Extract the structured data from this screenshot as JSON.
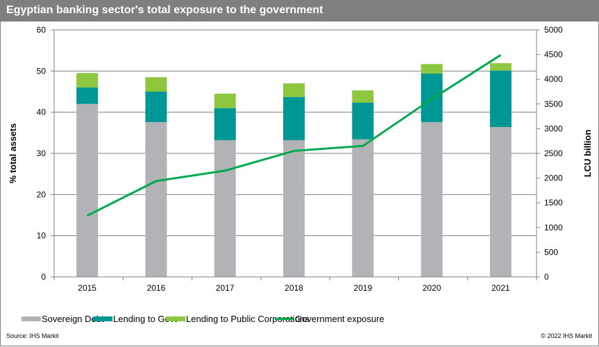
{
  "header": {
    "title": "Egyptian banking sector's total exposure to the government"
  },
  "footer": {
    "source": "Source:  IHS Markit",
    "copyright": "© 2022  IHS Markit"
  },
  "colors": {
    "sovereign_debt": "#b2b3b6",
    "lending_to_govt": "#009694",
    "lending_to_public_corporations": "#8dc63f",
    "government_exposure": "#00a94f",
    "gridline": "#808080",
    "title_bar": "#7f7f7f"
  },
  "chart_data": {
    "type": "bar",
    "stacked": true,
    "title": "Egyptian banking sector's total exposure to the government",
    "categories": [
      "2015",
      "2016",
      "2017",
      "2018",
      "2019",
      "2020",
      "2021"
    ],
    "xlabel": "",
    "ylabel": "% total assets",
    "ylabel_right": "LCU billion",
    "ylim": [
      0,
      60
    ],
    "yticks": [
      0,
      10,
      20,
      30,
      40,
      50,
      60
    ],
    "ylim_right": [
      0,
      5000
    ],
    "yticks_right": [
      0,
      500,
      1000,
      1500,
      2000,
      2500,
      3000,
      3500,
      4000,
      4500,
      5000
    ],
    "grid": true,
    "legend_position": "bottom",
    "series": [
      {
        "name": "Sovereign Debt",
        "type": "bar",
        "axis": "left",
        "values": [
          42.0,
          37.6,
          33.2,
          33.2,
          33.4,
          37.6,
          36.4
        ]
      },
      {
        "name": "Lending to Govt",
        "type": "bar",
        "axis": "left",
        "values": [
          4.0,
          7.4,
          7.8,
          10.5,
          8.9,
          11.8,
          13.7
        ]
      },
      {
        "name": "Lending to Public Corporations",
        "type": "bar",
        "axis": "left",
        "values": [
          3.5,
          3.5,
          3.5,
          3.3,
          3.0,
          2.3,
          1.8
        ]
      },
      {
        "name": "Government exposure",
        "type": "line",
        "axis": "right",
        "values": [
          1240,
          1940,
          2150,
          2550,
          2650,
          3600,
          4490
        ]
      }
    ]
  }
}
